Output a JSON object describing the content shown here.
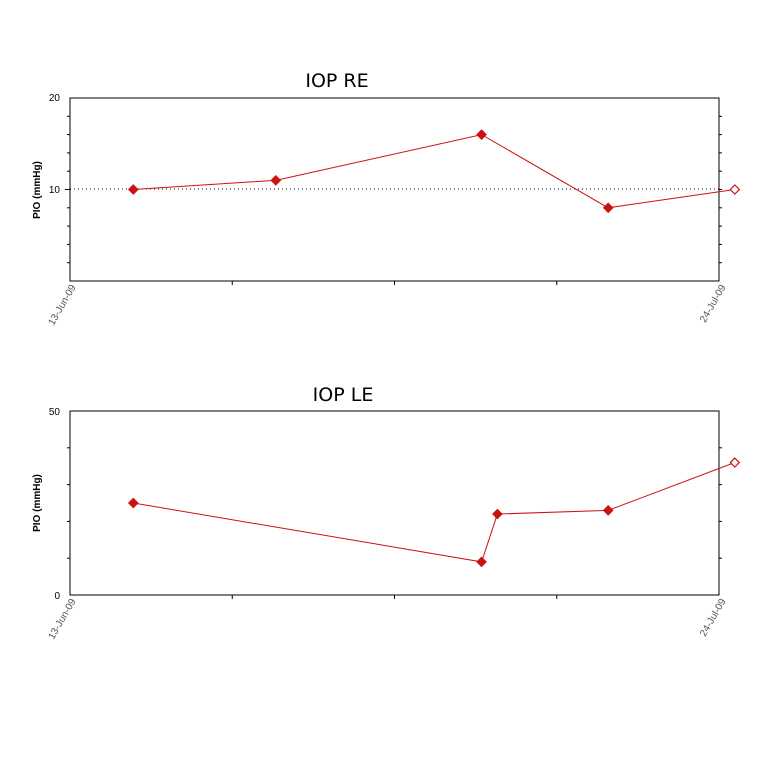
{
  "chart_data": [
    {
      "type": "line",
      "title": "IOP RE",
      "ylabel": "PIO (mmHg)",
      "xlabel": "",
      "x_tick_labels": [
        "13-Jun-09",
        "24-Jul-09"
      ],
      "xlim": [
        "2009-06-13",
        "2009-07-24"
      ],
      "ylim": [
        0,
        20
      ],
      "y_tick_labels": [
        "10",
        "20"
      ],
      "reference_line": 10,
      "color": "#cc1111",
      "series": [
        {
          "x": [
            "2009-06-17",
            "2009-06-26",
            "2009-07-09",
            "2009-07-17",
            "2009-07-25"
          ],
          "values": [
            10,
            11,
            16,
            8,
            10
          ],
          "last_point_hollow": true
        }
      ]
    },
    {
      "type": "line",
      "title": "IOP LE",
      "ylabel": "PIO (mmHg)",
      "xlabel": "",
      "x_tick_labels": [
        "13-Jun-09",
        "24-Jul-09"
      ],
      "xlim": [
        "2009-06-13",
        "2009-07-24"
      ],
      "ylim": [
        0,
        50
      ],
      "y_tick_labels": [
        "0",
        "50"
      ],
      "color": "#cc1111",
      "series": [
        {
          "x": [
            "2009-06-17",
            "2009-07-09",
            "2009-07-10",
            "2009-07-17",
            "2009-07-25"
          ],
          "values": [
            25,
            9,
            22,
            23,
            36
          ],
          "last_point_hollow": true
        }
      ]
    }
  ]
}
